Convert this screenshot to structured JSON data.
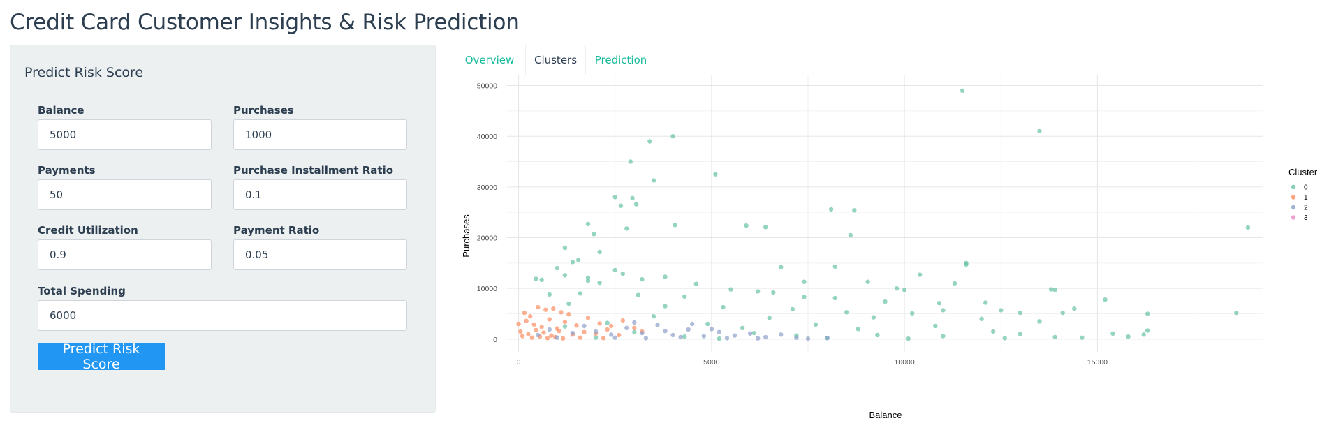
{
  "app": {
    "title": "Credit Card Customer Insights & Risk Prediction"
  },
  "sidebar": {
    "title": "Predict Risk Score",
    "fields": {
      "balance": {
        "label": "Balance",
        "value": "5000"
      },
      "purchases": {
        "label": "Purchases",
        "value": "1000"
      },
      "payments": {
        "label": "Payments",
        "value": "50"
      },
      "installment_ratio": {
        "label": "Purchase Installment Ratio",
        "value": "0.1"
      },
      "credit_utilization": {
        "label": "Credit Utilization",
        "value": "0.9"
      },
      "payment_ratio": {
        "label": "Payment Ratio",
        "value": "0.05"
      },
      "total_spending": {
        "label": "Total Spending",
        "value": "6000"
      }
    },
    "button_label": "Predict Risk Score",
    "button_color": "#2196f3"
  },
  "tabs": [
    {
      "label": "Overview",
      "active": false
    },
    {
      "label": "Clusters",
      "active": true
    },
    {
      "label": "Prediction",
      "active": false
    }
  ],
  "chart_data": {
    "type": "scatter",
    "xlabel": "Balance",
    "ylabel": "Purchases",
    "xlim": [
      -300,
      19300
    ],
    "ylim": [
      -2500,
      52000
    ],
    "xticks": [
      0,
      5000,
      10000,
      15000
    ],
    "yticks": [
      0,
      10000,
      20000,
      30000,
      40000,
      50000
    ],
    "grid": true,
    "legend_title": "Cluster",
    "legend_position": "right",
    "series": [
      {
        "name": "0",
        "color": "#66c2a5",
        "points": [
          [
            11500,
            49000
          ],
          [
            13500,
            41000
          ],
          [
            4000,
            40000
          ],
          [
            3400,
            39000
          ],
          [
            2900,
            35000
          ],
          [
            5100,
            32500
          ],
          [
            3500,
            31300
          ],
          [
            2500,
            28000
          ],
          [
            2950,
            27800
          ],
          [
            2650,
            26300
          ],
          [
            3050,
            26600
          ],
          [
            8100,
            25600
          ],
          [
            8700,
            25400
          ],
          [
            18900,
            22000
          ],
          [
            1800,
            22700
          ],
          [
            2800,
            21800
          ],
          [
            4050,
            22500
          ],
          [
            5900,
            22400
          ],
          [
            6400,
            22100
          ],
          [
            8600,
            20500
          ],
          [
            1950,
            20700
          ],
          [
            1200,
            18000
          ],
          [
            2100,
            17200
          ],
          [
            1400,
            15200
          ],
          [
            1550,
            15600
          ],
          [
            11600,
            15000
          ],
          [
            11600,
            14700
          ],
          [
            6800,
            14200
          ],
          [
            8200,
            14300
          ],
          [
            1000,
            14000
          ],
          [
            2500,
            13600
          ],
          [
            2700,
            12900
          ],
          [
            10400,
            12700
          ],
          [
            1200,
            12600
          ],
          [
            1800,
            12100
          ],
          [
            3800,
            12300
          ],
          [
            3200,
            11800
          ],
          [
            2100,
            11100
          ],
          [
            1800,
            11500
          ],
          [
            450,
            11900
          ],
          [
            600,
            11700
          ],
          [
            7400,
            11300
          ],
          [
            9050,
            11300
          ],
          [
            11300,
            11000
          ],
          [
            4600,
            10900
          ],
          [
            5500,
            9800
          ],
          [
            9800,
            10000
          ],
          [
            10000,
            9700
          ],
          [
            13800,
            9800
          ],
          [
            13900,
            9700
          ],
          [
            6200,
            9400
          ],
          [
            6600,
            9200
          ],
          [
            1600,
            9000
          ],
          [
            800,
            8800
          ],
          [
            3100,
            8700
          ],
          [
            4300,
            8400
          ],
          [
            7400,
            8300
          ],
          [
            8200,
            8100
          ],
          [
            15200,
            7800
          ],
          [
            9500,
            7400
          ],
          [
            10900,
            7100
          ],
          [
            12100,
            7200
          ],
          [
            1300,
            7000
          ],
          [
            3800,
            6500
          ],
          [
            5300,
            6300
          ],
          [
            7100,
            5900
          ],
          [
            11000,
            5700
          ],
          [
            12500,
            5700
          ],
          [
            14400,
            6000
          ],
          [
            8500,
            5300
          ],
          [
            10200,
            5100
          ],
          [
            13000,
            5200
          ],
          [
            14100,
            5200
          ],
          [
            16300,
            5000
          ],
          [
            18600,
            5200
          ],
          [
            3500,
            4500
          ],
          [
            6500,
            4200
          ],
          [
            9200,
            4300
          ],
          [
            12000,
            4000
          ],
          [
            13500,
            3500
          ],
          [
            2300,
            3200
          ],
          [
            4900,
            3000
          ],
          [
            7700,
            2900
          ],
          [
            10800,
            2600
          ],
          [
            1200,
            2500
          ],
          [
            5800,
            2200
          ],
          [
            8800,
            2000
          ],
          [
            12300,
            1500
          ],
          [
            16300,
            1700
          ],
          [
            13000,
            1000
          ],
          [
            15400,
            1100
          ],
          [
            3000,
            1400
          ],
          [
            6100,
            1200
          ],
          [
            7200,
            700
          ],
          [
            9300,
            800
          ],
          [
            11000,
            600
          ],
          [
            13900,
            400
          ],
          [
            14600,
            300
          ],
          [
            15800,
            500
          ],
          [
            16200,
            900
          ],
          [
            4300,
            500
          ],
          [
            2000,
            300
          ],
          [
            5200,
            100
          ],
          [
            8000,
            200
          ],
          [
            10100,
            100
          ],
          [
            12600,
            200
          ]
        ]
      },
      {
        "name": "1",
        "color": "#fc8d62",
        "points": [
          [
            0,
            3000
          ],
          [
            150,
            5200
          ],
          [
            300,
            4500
          ],
          [
            500,
            6300
          ],
          [
            700,
            5800
          ],
          [
            900,
            6000
          ],
          [
            1100,
            5300
          ],
          [
            1300,
            4900
          ],
          [
            200,
            3600
          ],
          [
            400,
            2900
          ],
          [
            600,
            2400
          ],
          [
            800,
            3900
          ],
          [
            1000,
            2100
          ],
          [
            1200,
            3400
          ],
          [
            1500,
            2700
          ],
          [
            1800,
            4200
          ],
          [
            2100,
            3100
          ],
          [
            2400,
            2600
          ],
          [
            2700,
            3700
          ],
          [
            3000,
            2200
          ],
          [
            50,
            1500
          ],
          [
            250,
            1000
          ],
          [
            450,
            1800
          ],
          [
            650,
            1300
          ],
          [
            850,
            700
          ],
          [
            1050,
            1600
          ],
          [
            1400,
            900
          ],
          [
            1700,
            1400
          ],
          [
            2000,
            1100
          ],
          [
            2300,
            1900
          ],
          [
            2600,
            800
          ],
          [
            3200,
            1500
          ],
          [
            100,
            600
          ],
          [
            350,
            300
          ],
          [
            550,
            500
          ],
          [
            750,
            200
          ],
          [
            950,
            400
          ],
          [
            1150,
            150
          ],
          [
            1600,
            300
          ],
          [
            2200,
            200
          ]
        ]
      },
      {
        "name": "2",
        "color": "#8da0cb",
        "points": [
          [
            2000,
            1500
          ],
          [
            2400,
            900
          ],
          [
            2800,
            2200
          ],
          [
            3200,
            1200
          ],
          [
            3600,
            2800
          ],
          [
            4000,
            800
          ],
          [
            4400,
            1900
          ],
          [
            4800,
            600
          ],
          [
            5200,
            1400
          ],
          [
            5600,
            700
          ],
          [
            6000,
            1100
          ],
          [
            6400,
            400
          ],
          [
            6800,
            900
          ],
          [
            7200,
            300
          ],
          [
            1000,
            300
          ],
          [
            1400,
            1200
          ],
          [
            1700,
            2600
          ],
          [
            3000,
            3300
          ],
          [
            3800,
            1600
          ],
          [
            4500,
            3000
          ],
          [
            5000,
            2000
          ],
          [
            2500,
            300
          ],
          [
            3300,
            200
          ],
          [
            4200,
            400
          ],
          [
            5400,
            200
          ],
          [
            6200,
            150
          ],
          [
            7500,
            100
          ],
          [
            8000,
            250
          ],
          [
            500,
            800
          ],
          [
            800,
            1900
          ]
        ]
      },
      {
        "name": "3",
        "color": "#e78ac3",
        "points": []
      }
    ]
  }
}
